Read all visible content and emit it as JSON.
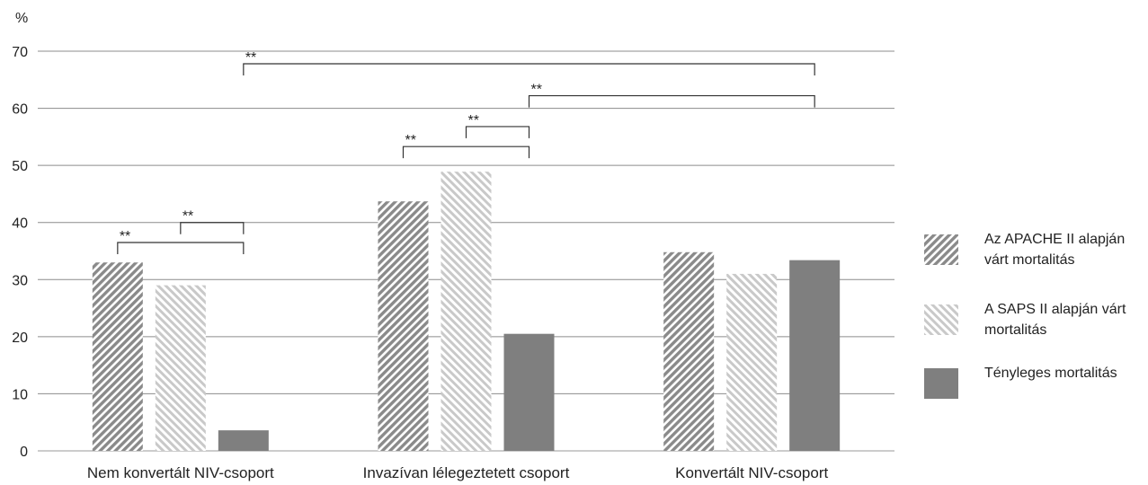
{
  "chart_data": {
    "type": "bar",
    "y_unit_label": "%",
    "ylim": [
      0,
      70
    ],
    "yticks": [
      0,
      10,
      20,
      30,
      40,
      50,
      60,
      70
    ],
    "grid": true,
    "categories": [
      "Nem konvertált NIV-csoport",
      "Invazívan lélegeztetett csoport",
      "Konvertált NIV-csoport"
    ],
    "series": [
      {
        "name": "Az APACHE II alapján várt mortalitás",
        "values": [
          33,
          43.7,
          34.8
        ],
        "color": "#8a8a8a",
        "pattern": "dense-diagonal-hatch"
      },
      {
        "name": "A SAPS II alapján várt mortalitás",
        "values": [
          29,
          48.9,
          31
        ],
        "color": "#c8c8c8",
        "pattern": "light-diagonal-hatch"
      },
      {
        "name": "Tényleges mortalitás",
        "values": [
          3.6,
          20.5,
          33.4
        ],
        "color": "#7f7f7f",
        "pattern": "solid"
      }
    ],
    "legend": {
      "position": "right",
      "labels": [
        [
          "Az APACHE II alapján",
          "várt mortalitás"
        ],
        [
          "A SAPS II alapján várt",
          "mortalitás"
        ],
        [
          "Tényleges mortalitás"
        ]
      ]
    },
    "significance": [
      {
        "label": "**",
        "from": [
          0,
          0
        ],
        "to": [
          0,
          2
        ],
        "level": 36.5
      },
      {
        "label": "**",
        "from": [
          0,
          1
        ],
        "to": [
          0,
          2
        ],
        "level": 40
      },
      {
        "label": "**",
        "from": [
          1,
          0
        ],
        "to": [
          1,
          2
        ],
        "level": 53.3
      },
      {
        "label": "**",
        "from": [
          1,
          1
        ],
        "to": [
          1,
          2
        ],
        "level": 56.8
      },
      {
        "label": "**",
        "from": [
          1,
          2
        ],
        "to": [
          2,
          2
        ],
        "level": 62.2
      },
      {
        "label": "**",
        "from": [
          0,
          2
        ],
        "to": [
          2,
          2
        ],
        "level": 67.8
      }
    ]
  }
}
